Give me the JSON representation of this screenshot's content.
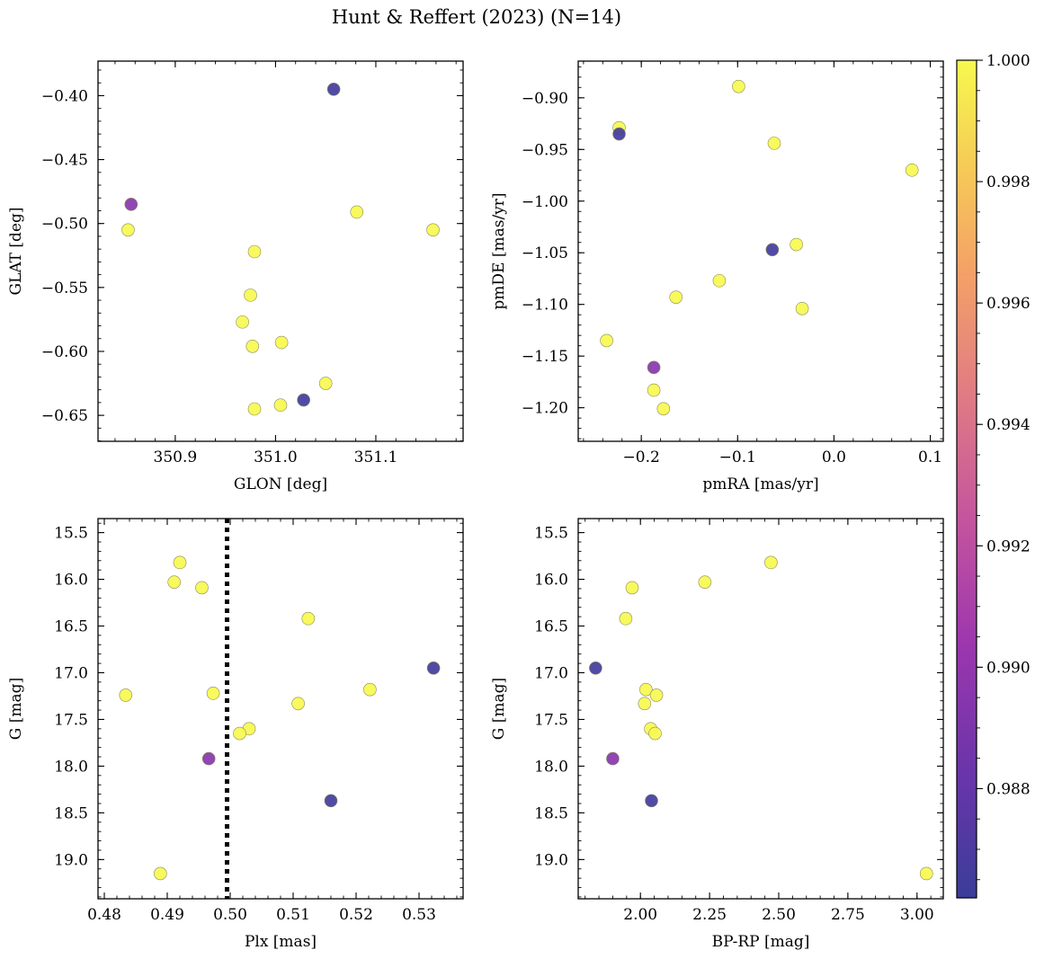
{
  "figure_title": "Hunt & Reffert (2023) (N=14)",
  "colorbar": {
    "min": 0.9862,
    "max": 1.0,
    "ticks": [
      0.988,
      0.99,
      0.992,
      0.994,
      0.996,
      0.998,
      1.0
    ],
    "tick_labels": [
      "0.988",
      "0.990",
      "0.992",
      "0.994",
      "0.996",
      "0.998",
      "1.000"
    ],
    "colormap": "plasma"
  },
  "chart_data": [
    {
      "type": "scatter",
      "id": "glon-glat",
      "xlabel": "GLON [deg]",
      "ylabel": "GLAT [deg]",
      "xlim": [
        350.823,
        351.187
      ],
      "ylim": [
        -0.6703,
        -0.373
      ],
      "y_inverted": false,
      "xticks": [
        350.9,
        351.0,
        351.1
      ],
      "xtick_labels": [
        "350.9",
        "351.0",
        "351.1"
      ],
      "yticks": [
        -0.4,
        -0.45,
        -0.5,
        -0.55,
        -0.6,
        -0.65
      ],
      "ytick_labels": [
        "−0.40",
        "−0.45",
        "−0.50",
        "−0.55",
        "−0.60",
        "−0.65"
      ],
      "points": [
        {
          "x": 351.058,
          "y": -0.395,
          "c": 0.9865
        },
        {
          "x": 350.856,
          "y": -0.485,
          "c": 0.9895
        },
        {
          "x": 350.853,
          "y": -0.505,
          "c": 1.0
        },
        {
          "x": 351.081,
          "y": -0.491,
          "c": 1.0
        },
        {
          "x": 351.157,
          "y": -0.505,
          "c": 1.0
        },
        {
          "x": 350.979,
          "y": -0.522,
          "c": 1.0
        },
        {
          "x": 350.975,
          "y": -0.556,
          "c": 1.0
        },
        {
          "x": 350.967,
          "y": -0.577,
          "c": 1.0
        },
        {
          "x": 350.977,
          "y": -0.596,
          "c": 1.0
        },
        {
          "x": 351.006,
          "y": -0.593,
          "c": 1.0
        },
        {
          "x": 351.05,
          "y": -0.625,
          "c": 1.0
        },
        {
          "x": 351.028,
          "y": -0.638,
          "c": 0.9865
        },
        {
          "x": 351.005,
          "y": -0.642,
          "c": 1.0
        },
        {
          "x": 350.979,
          "y": -0.645,
          "c": 1.0
        }
      ]
    },
    {
      "type": "scatter",
      "id": "pmra-pmde",
      "xlabel": "pmRA [mas/yr]",
      "ylabel": "pmDE [mas/yr]",
      "xlim": [
        -0.2655,
        0.1135
      ],
      "ylim": [
        -1.2325,
        -0.8645
      ],
      "y_inverted": false,
      "xticks": [
        -0.2,
        -0.1,
        0.0,
        0.1
      ],
      "xtick_labels": [
        "−0.2",
        "−0.1",
        "0.0",
        "0.1"
      ],
      "yticks": [
        -0.9,
        -0.95,
        -1.0,
        -1.05,
        -1.1,
        -1.15,
        -1.2
      ],
      "ytick_labels": [
        "−0.90",
        "−0.95",
        "−1.00",
        "−1.05",
        "−1.10",
        "−1.15",
        "−1.20"
      ],
      "points": [
        {
          "x": -0.099,
          "y": -0.889,
          "c": 1.0
        },
        {
          "x": -0.223,
          "y": -0.929,
          "c": 1.0
        },
        {
          "x": -0.223,
          "y": -0.935,
          "c": 0.9865
        },
        {
          "x": -0.062,
          "y": -0.944,
          "c": 1.0
        },
        {
          "x": 0.081,
          "y": -0.97,
          "c": 1.0
        },
        {
          "x": -0.064,
          "y": -1.047,
          "c": 0.9865
        },
        {
          "x": -0.039,
          "y": -1.042,
          "c": 1.0
        },
        {
          "x": -0.119,
          "y": -1.077,
          "c": 1.0
        },
        {
          "x": -0.164,
          "y": -1.093,
          "c": 1.0
        },
        {
          "x": -0.033,
          "y": -1.104,
          "c": 1.0
        },
        {
          "x": -0.236,
          "y": -1.135,
          "c": 1.0
        },
        {
          "x": -0.187,
          "y": -1.161,
          "c": 0.9895
        },
        {
          "x": -0.187,
          "y": -1.183,
          "c": 1.0
        },
        {
          "x": -0.177,
          "y": -1.201,
          "c": 1.0
        }
      ]
    },
    {
      "type": "scatter",
      "id": "plx-g",
      "xlabel": "Plx [mas]",
      "ylabel": "G [mag]",
      "xlim": [
        0.479,
        0.537
      ],
      "ylim": [
        15.35,
        19.42
      ],
      "y_inverted": true,
      "vline": 0.4995,
      "xticks": [
        0.48,
        0.49,
        0.5,
        0.51,
        0.52,
        0.53
      ],
      "xtick_labels": [
        "0.48",
        "0.49",
        "0.50",
        "0.51",
        "0.52",
        "0.53"
      ],
      "yticks": [
        15.5,
        16.0,
        16.5,
        17.0,
        17.5,
        18.0,
        18.5,
        19.0
      ],
      "ytick_labels": [
        "15.5",
        "16.0",
        "16.5",
        "17.0",
        "17.5",
        "18.0",
        "18.5",
        "19.0"
      ],
      "points": [
        {
          "x": 0.492,
          "y": 15.82,
          "c": 1.0
        },
        {
          "x": 0.4911,
          "y": 16.03,
          "c": 1.0
        },
        {
          "x": 0.4955,
          "y": 16.09,
          "c": 1.0
        },
        {
          "x": 0.5124,
          "y": 16.42,
          "c": 1.0
        },
        {
          "x": 0.5323,
          "y": 16.95,
          "c": 0.9865
        },
        {
          "x": 0.5222,
          "y": 17.18,
          "c": 1.0
        },
        {
          "x": 0.4834,
          "y": 17.24,
          "c": 1.0
        },
        {
          "x": 0.4973,
          "y": 17.22,
          "c": 1.0
        },
        {
          "x": 0.5108,
          "y": 17.33,
          "c": 1.0
        },
        {
          "x": 0.503,
          "y": 17.6,
          "c": 1.0
        },
        {
          "x": 0.5015,
          "y": 17.65,
          "c": 1.0
        },
        {
          "x": 0.4966,
          "y": 17.92,
          "c": 0.9895
        },
        {
          "x": 0.516,
          "y": 18.37,
          "c": 0.9865
        },
        {
          "x": 0.4889,
          "y": 19.15,
          "c": 1.0
        }
      ]
    },
    {
      "type": "scatter",
      "id": "bprp-g",
      "xlabel": "BP-RP [mag]",
      "ylabel": "G [mag]",
      "xlim": [
        1.775,
        3.095
      ],
      "ylim": [
        15.35,
        19.42
      ],
      "y_inverted": true,
      "xticks": [
        2.0,
        2.25,
        2.5,
        2.75,
        3.0
      ],
      "xtick_labels": [
        "2.00",
        "2.25",
        "2.50",
        "2.75",
        "3.00"
      ],
      "yticks": [
        15.5,
        16.0,
        16.5,
        17.0,
        17.5,
        18.0,
        18.5,
        19.0
      ],
      "ytick_labels": [
        "15.5",
        "16.0",
        "16.5",
        "17.0",
        "17.5",
        "18.0",
        "18.5",
        "19.0"
      ],
      "points": [
        {
          "x": 2.472,
          "y": 15.82,
          "c": 1.0
        },
        {
          "x": 2.233,
          "y": 16.03,
          "c": 1.0
        },
        {
          "x": 1.97,
          "y": 16.09,
          "c": 1.0
        },
        {
          "x": 1.947,
          "y": 16.42,
          "c": 1.0
        },
        {
          "x": 1.838,
          "y": 16.95,
          "c": 0.9865
        },
        {
          "x": 2.02,
          "y": 17.18,
          "c": 1.0
        },
        {
          "x": 2.058,
          "y": 17.24,
          "c": 1.0
        },
        {
          "x": 2.015,
          "y": 17.33,
          "c": 1.0
        },
        {
          "x": 2.037,
          "y": 17.6,
          "c": 1.0
        },
        {
          "x": 2.053,
          "y": 17.65,
          "c": 1.0
        },
        {
          "x": 1.9,
          "y": 17.92,
          "c": 0.9895
        },
        {
          "x": 2.04,
          "y": 18.37,
          "c": 0.9865
        },
        {
          "x": 3.034,
          "y": 19.15,
          "c": 1.0
        }
      ]
    }
  ]
}
